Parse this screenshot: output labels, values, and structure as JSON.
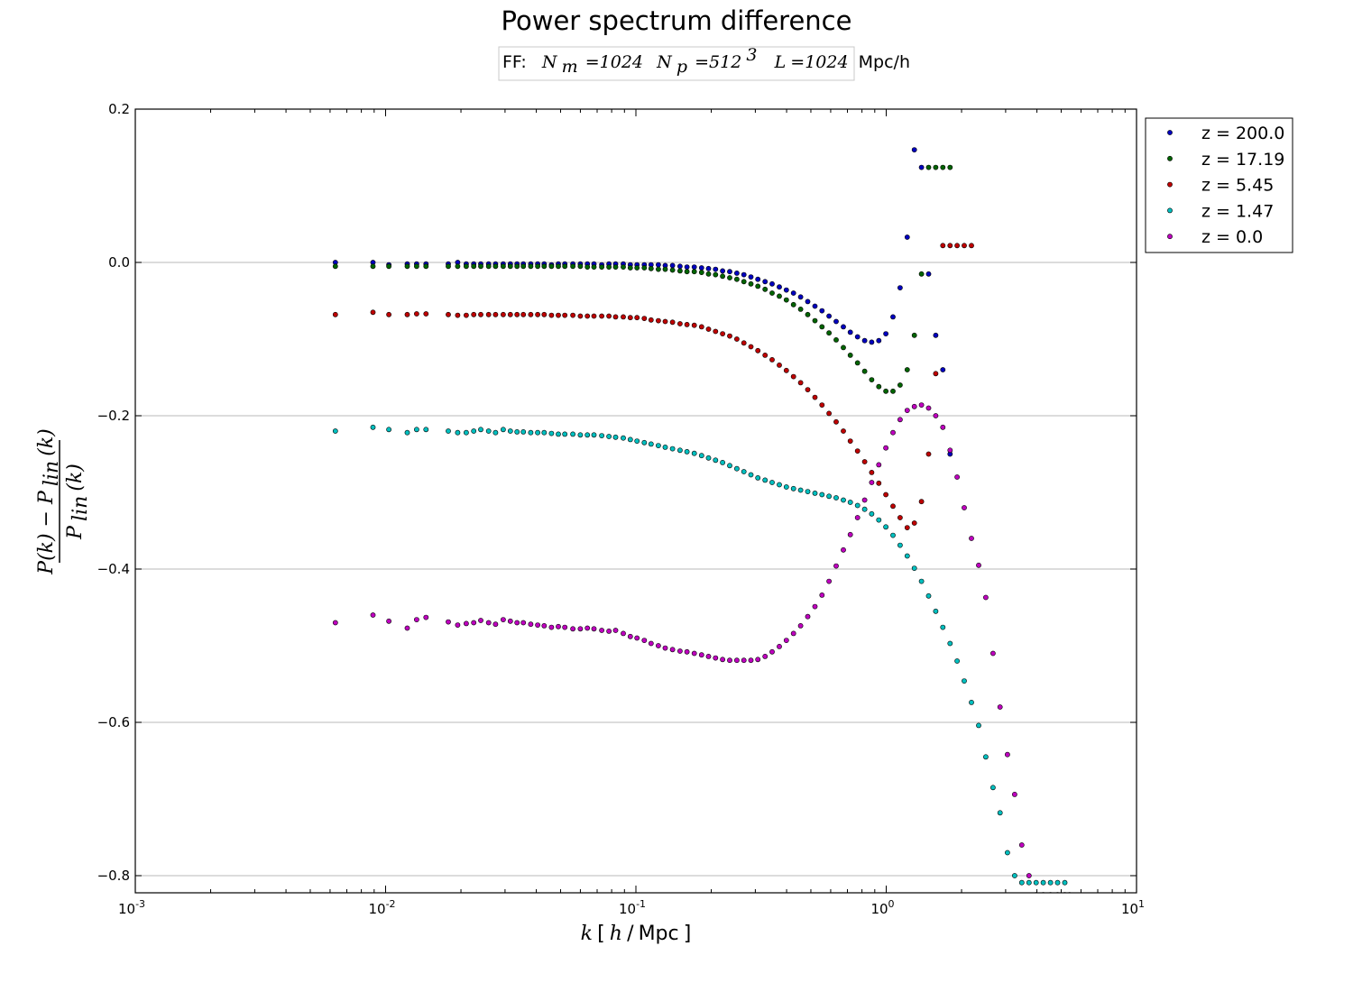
{
  "chart_data": {
    "type": "scatter",
    "title": "Power spectrum difference",
    "subtitle": {
      "prefix": "FF:",
      "nm_symbol": "N",
      "nm_sub": "m",
      "nm_value": "=1024",
      "np_symbol": "N",
      "np_sub": "p",
      "np_value": "=512",
      "np_exp": "3",
      "l_symbol": "L",
      "l_value": "=1024",
      "unit": "Mpc/h"
    },
    "xlabel": {
      "math_k": "k",
      "open": "[",
      "math_h": "h",
      "slash": "/",
      "unit": "Mpc",
      "close": "]"
    },
    "ylabel": {
      "numerator": "P(k) − P",
      "num_sub": "lin",
      "num_tail": "(k)",
      "denominator": "P",
      "den_sub": "lin",
      "den_tail": "(k)"
    },
    "x_scale": "log",
    "xlim": [
      0.001,
      10
    ],
    "ylim": [
      -0.825,
      0.2
    ],
    "x_ticks": [
      {
        "base": "10",
        "exp": "-3",
        "value": 0.001
      },
      {
        "base": "10",
        "exp": "-2",
        "value": 0.01
      },
      {
        "base": "10",
        "exp": "-1",
        "value": 0.1
      },
      {
        "base": "10",
        "exp": "0",
        "value": 1
      },
      {
        "base": "10",
        "exp": "1",
        "value": 10
      }
    ],
    "y_ticks": [
      {
        "label": "0.2",
        "value": 0.2
      },
      {
        "label": "0.0",
        "value": 0.0
      },
      {
        "label": "−0.2",
        "value": -0.2
      },
      {
        "label": "−0.4",
        "value": -0.4
      },
      {
        "label": "−0.6",
        "value": -0.6
      },
      {
        "label": "−0.8",
        "value": -0.8
      }
    ],
    "grid": "horizontal",
    "legend_position": "outside-top-right",
    "series": [
      {
        "name": "z = 200.0",
        "color": "#0000bf",
        "x": [
          0.0063,
          0.0089,
          0.0103,
          0.0122,
          0.0133,
          0.0145,
          0.0178,
          0.0194,
          0.021,
          0.0225,
          0.024,
          0.0258,
          0.0275,
          0.0295,
          0.0315,
          0.0335,
          0.0355,
          0.038,
          0.0405,
          0.043,
          0.046,
          0.049,
          0.052,
          0.056,
          0.06,
          0.064,
          0.068,
          0.073,
          0.078,
          0.083,
          0.089,
          0.095,
          0.101,
          0.108,
          0.115,
          0.123,
          0.131,
          0.14,
          0.15,
          0.16,
          0.171,
          0.183,
          0.195,
          0.208,
          0.222,
          0.237,
          0.253,
          0.27,
          0.288,
          0.307,
          0.328,
          0.35,
          0.374,
          0.399,
          0.426,
          0.455,
          0.486,
          0.519,
          0.554,
          0.591,
          0.631,
          0.674,
          0.719,
          0.768,
          0.82,
          0.875,
          0.934,
          0.997,
          1.064,
          1.136,
          1.213,
          1.295,
          1.383,
          1.477,
          1.577,
          1.684,
          1.8
        ],
        "y": [
          0.0,
          0.0,
          -0.003,
          -0.002,
          -0.002,
          -0.002,
          -0.002,
          0.0,
          -0.002,
          -0.002,
          -0.002,
          -0.002,
          -0.002,
          -0.002,
          -0.002,
          -0.002,
          -0.002,
          -0.002,
          -0.002,
          -0.002,
          -0.003,
          -0.002,
          -0.002,
          -0.002,
          -0.002,
          -0.002,
          -0.002,
          -0.003,
          -0.002,
          -0.002,
          -0.002,
          -0.003,
          -0.003,
          -0.003,
          -0.003,
          -0.003,
          -0.004,
          -0.004,
          -0.005,
          -0.006,
          -0.006,
          -0.007,
          -0.008,
          -0.009,
          -0.011,
          -0.012,
          -0.014,
          -0.016,
          -0.019,
          -0.022,
          -0.025,
          -0.028,
          -0.032,
          -0.036,
          -0.04,
          -0.045,
          -0.051,
          -0.057,
          -0.063,
          -0.07,
          -0.077,
          -0.084,
          -0.091,
          -0.097,
          -0.102,
          -0.104,
          -0.102,
          -0.093,
          -0.071,
          -0.033,
          0.033,
          0.147,
          0.124,
          -0.015,
          -0.095,
          -0.14,
          -0.25
        ]
      },
      {
        "name": "z = 17.19",
        "color": "#006400",
        "x": [
          0.0063,
          0.0089,
          0.0103,
          0.0122,
          0.0133,
          0.0145,
          0.0178,
          0.0194,
          0.021,
          0.0225,
          0.024,
          0.0258,
          0.0275,
          0.0295,
          0.0315,
          0.0335,
          0.0355,
          0.038,
          0.0405,
          0.043,
          0.046,
          0.049,
          0.052,
          0.056,
          0.06,
          0.064,
          0.068,
          0.073,
          0.078,
          0.083,
          0.089,
          0.095,
          0.101,
          0.108,
          0.115,
          0.123,
          0.131,
          0.14,
          0.15,
          0.16,
          0.171,
          0.183,
          0.195,
          0.208,
          0.222,
          0.237,
          0.253,
          0.27,
          0.288,
          0.307,
          0.328,
          0.35,
          0.374,
          0.399,
          0.426,
          0.455,
          0.486,
          0.519,
          0.554,
          0.591,
          0.631,
          0.674,
          0.719,
          0.768,
          0.82,
          0.875,
          0.934,
          0.997,
          1.064,
          1.136,
          1.213,
          1.295,
          1.383,
          1.477,
          1.577,
          1.684,
          1.8
        ],
        "y": [
          -0.005,
          -0.005,
          -0.005,
          -0.005,
          -0.005,
          -0.005,
          -0.005,
          -0.005,
          -0.005,
          -0.005,
          -0.005,
          -0.005,
          -0.005,
          -0.005,
          -0.005,
          -0.005,
          -0.005,
          -0.005,
          -0.005,
          -0.005,
          -0.005,
          -0.005,
          -0.005,
          -0.005,
          -0.005,
          -0.006,
          -0.006,
          -0.006,
          -0.006,
          -0.006,
          -0.006,
          -0.007,
          -0.007,
          -0.007,
          -0.008,
          -0.009,
          -0.009,
          -0.01,
          -0.011,
          -0.012,
          -0.012,
          -0.013,
          -0.015,
          -0.016,
          -0.018,
          -0.02,
          -0.022,
          -0.025,
          -0.028,
          -0.031,
          -0.035,
          -0.04,
          -0.044,
          -0.049,
          -0.055,
          -0.061,
          -0.068,
          -0.076,
          -0.084,
          -0.092,
          -0.101,
          -0.111,
          -0.121,
          -0.131,
          -0.142,
          -0.153,
          -0.162,
          -0.168,
          -0.168,
          -0.16,
          -0.14,
          -0.095,
          -0.015,
          0.124,
          0.124,
          0.124,
          0.124
        ]
      },
      {
        "name": "z = 5.45",
        "color": "#bf0000",
        "x": [
          0.0063,
          0.0089,
          0.0103,
          0.0122,
          0.0133,
          0.0145,
          0.0178,
          0.0194,
          0.021,
          0.0225,
          0.024,
          0.0258,
          0.0275,
          0.0295,
          0.0315,
          0.0335,
          0.0355,
          0.038,
          0.0405,
          0.043,
          0.046,
          0.049,
          0.052,
          0.056,
          0.06,
          0.064,
          0.068,
          0.073,
          0.078,
          0.083,
          0.089,
          0.095,
          0.101,
          0.108,
          0.115,
          0.123,
          0.131,
          0.14,
          0.15,
          0.16,
          0.171,
          0.183,
          0.195,
          0.208,
          0.222,
          0.237,
          0.253,
          0.27,
          0.288,
          0.307,
          0.328,
          0.35,
          0.374,
          0.399,
          0.426,
          0.455,
          0.486,
          0.519,
          0.554,
          0.591,
          0.631,
          0.674,
          0.719,
          0.768,
          0.82,
          0.875,
          0.934,
          0.997,
          1.064,
          1.136,
          1.213,
          1.295,
          1.383,
          1.477,
          1.577,
          1.684,
          1.8,
          1.92,
          2.05,
          2.19
        ],
        "y": [
          -0.068,
          -0.065,
          -0.068,
          -0.068,
          -0.067,
          -0.067,
          -0.068,
          -0.069,
          -0.069,
          -0.068,
          -0.068,
          -0.068,
          -0.068,
          -0.068,
          -0.068,
          -0.068,
          -0.068,
          -0.068,
          -0.068,
          -0.068,
          -0.069,
          -0.069,
          -0.069,
          -0.069,
          -0.07,
          -0.07,
          -0.07,
          -0.07,
          -0.07,
          -0.071,
          -0.071,
          -0.072,
          -0.072,
          -0.073,
          -0.075,
          -0.076,
          -0.077,
          -0.078,
          -0.08,
          -0.081,
          -0.082,
          -0.084,
          -0.087,
          -0.09,
          -0.093,
          -0.096,
          -0.1,
          -0.105,
          -0.11,
          -0.115,
          -0.121,
          -0.127,
          -0.134,
          -0.141,
          -0.149,
          -0.157,
          -0.166,
          -0.176,
          -0.186,
          -0.197,
          -0.208,
          -0.22,
          -0.233,
          -0.246,
          -0.26,
          -0.274,
          -0.288,
          -0.303,
          -0.318,
          -0.333,
          -0.346,
          -0.34,
          -0.312,
          -0.25,
          -0.145,
          0.022,
          0.022,
          0.022,
          0.022,
          0.022
        ]
      },
      {
        "name": "z = 1.47",
        "color": "#00bfbf",
        "x": [
          0.0063,
          0.0089,
          0.0103,
          0.0122,
          0.0133,
          0.0145,
          0.0178,
          0.0194,
          0.021,
          0.0225,
          0.024,
          0.0258,
          0.0275,
          0.0295,
          0.0315,
          0.0335,
          0.0355,
          0.038,
          0.0405,
          0.043,
          0.046,
          0.049,
          0.052,
          0.056,
          0.06,
          0.064,
          0.068,
          0.073,
          0.078,
          0.083,
          0.089,
          0.095,
          0.101,
          0.108,
          0.115,
          0.123,
          0.131,
          0.14,
          0.15,
          0.16,
          0.171,
          0.183,
          0.195,
          0.208,
          0.222,
          0.237,
          0.253,
          0.27,
          0.288,
          0.307,
          0.328,
          0.35,
          0.374,
          0.399,
          0.426,
          0.455,
          0.486,
          0.519,
          0.554,
          0.591,
          0.631,
          0.674,
          0.719,
          0.768,
          0.82,
          0.875,
          0.934,
          0.997,
          1.064,
          1.136,
          1.213,
          1.295,
          1.383,
          1.477,
          1.577,
          1.684,
          1.8,
          1.92,
          2.05,
          2.19,
          2.34,
          2.5,
          2.67,
          2.85,
          3.05,
          3.26,
          3.48,
          3.72,
          3.97,
          4.24,
          4.53,
          4.84,
          5.17
        ],
        "y": [
          -0.22,
          -0.215,
          -0.218,
          -0.222,
          -0.218,
          -0.218,
          -0.22,
          -0.222,
          -0.222,
          -0.22,
          -0.218,
          -0.22,
          -0.222,
          -0.218,
          -0.22,
          -0.221,
          -0.221,
          -0.222,
          -0.222,
          -0.222,
          -0.223,
          -0.224,
          -0.224,
          -0.224,
          -0.225,
          -0.225,
          -0.225,
          -0.226,
          -0.227,
          -0.228,
          -0.229,
          -0.231,
          -0.233,
          -0.235,
          -0.237,
          -0.239,
          -0.241,
          -0.243,
          -0.245,
          -0.247,
          -0.249,
          -0.252,
          -0.255,
          -0.258,
          -0.261,
          -0.265,
          -0.269,
          -0.273,
          -0.277,
          -0.281,
          -0.284,
          -0.287,
          -0.29,
          -0.293,
          -0.295,
          -0.297,
          -0.299,
          -0.301,
          -0.303,
          -0.305,
          -0.307,
          -0.31,
          -0.313,
          -0.317,
          -0.322,
          -0.328,
          -0.336,
          -0.345,
          -0.356,
          -0.369,
          -0.383,
          -0.399,
          -0.416,
          -0.435,
          -0.455,
          -0.476,
          -0.497,
          -0.52,
          -0.546,
          -0.574,
          -0.604,
          -0.645,
          -0.685,
          -0.718,
          -0.77,
          -0.8,
          -0.809,
          -0.809,
          -0.809,
          -0.809,
          -0.809,
          -0.809,
          -0.809
        ]
      },
      {
        "name": "z = 0.0",
        "color": "#bf00bf",
        "x": [
          0.0063,
          0.0089,
          0.0103,
          0.0122,
          0.0133,
          0.0145,
          0.0178,
          0.0194,
          0.021,
          0.0225,
          0.024,
          0.0258,
          0.0275,
          0.0295,
          0.0315,
          0.0335,
          0.0355,
          0.038,
          0.0405,
          0.043,
          0.046,
          0.049,
          0.052,
          0.056,
          0.06,
          0.064,
          0.068,
          0.073,
          0.078,
          0.083,
          0.089,
          0.095,
          0.101,
          0.108,
          0.115,
          0.123,
          0.131,
          0.14,
          0.15,
          0.16,
          0.171,
          0.183,
          0.195,
          0.208,
          0.222,
          0.237,
          0.253,
          0.27,
          0.288,
          0.307,
          0.328,
          0.35,
          0.374,
          0.399,
          0.426,
          0.455,
          0.486,
          0.519,
          0.554,
          0.591,
          0.631,
          0.674,
          0.719,
          0.768,
          0.82,
          0.875,
          0.934,
          0.997,
          1.064,
          1.136,
          1.213,
          1.295,
          1.383,
          1.477,
          1.577,
          1.684,
          1.8,
          1.92,
          2.05,
          2.19,
          2.34,
          2.5,
          2.67,
          2.85,
          3.05,
          3.26,
          3.48,
          3.72,
          3.97,
          4.24,
          4.53,
          4.84,
          5.17,
          5.4
        ],
        "y": [
          -0.47,
          -0.46,
          -0.468,
          -0.477,
          -0.466,
          -0.463,
          -0.469,
          -0.473,
          -0.471,
          -0.47,
          -0.467,
          -0.47,
          -0.472,
          -0.466,
          -0.468,
          -0.47,
          -0.47,
          -0.472,
          -0.473,
          -0.474,
          -0.476,
          -0.475,
          -0.476,
          -0.478,
          -0.478,
          -0.477,
          -0.478,
          -0.48,
          -0.481,
          -0.48,
          -0.484,
          -0.488,
          -0.49,
          -0.493,
          -0.497,
          -0.5,
          -0.503,
          -0.505,
          -0.507,
          -0.508,
          -0.51,
          -0.512,
          -0.514,
          -0.516,
          -0.518,
          -0.519,
          -0.519,
          -0.519,
          -0.519,
          -0.518,
          -0.514,
          -0.508,
          -0.501,
          -0.493,
          -0.484,
          -0.474,
          -0.462,
          -0.449,
          -0.434,
          -0.416,
          -0.396,
          -0.375,
          -0.355,
          -0.333,
          -0.31,
          -0.287,
          -0.264,
          -0.242,
          -0.222,
          -0.205,
          -0.193,
          -0.188,
          -0.186,
          -0.19,
          -0.2,
          -0.215,
          -0.245,
          -0.28,
          -0.32,
          -0.36,
          -0.395,
          -0.437,
          -0.51,
          -0.58,
          -0.642,
          -0.694,
          -0.76,
          -0.8,
          -0.825,
          -0.825,
          -0.825,
          -0.825,
          -0.825,
          -0.825
        ]
      }
    ]
  }
}
